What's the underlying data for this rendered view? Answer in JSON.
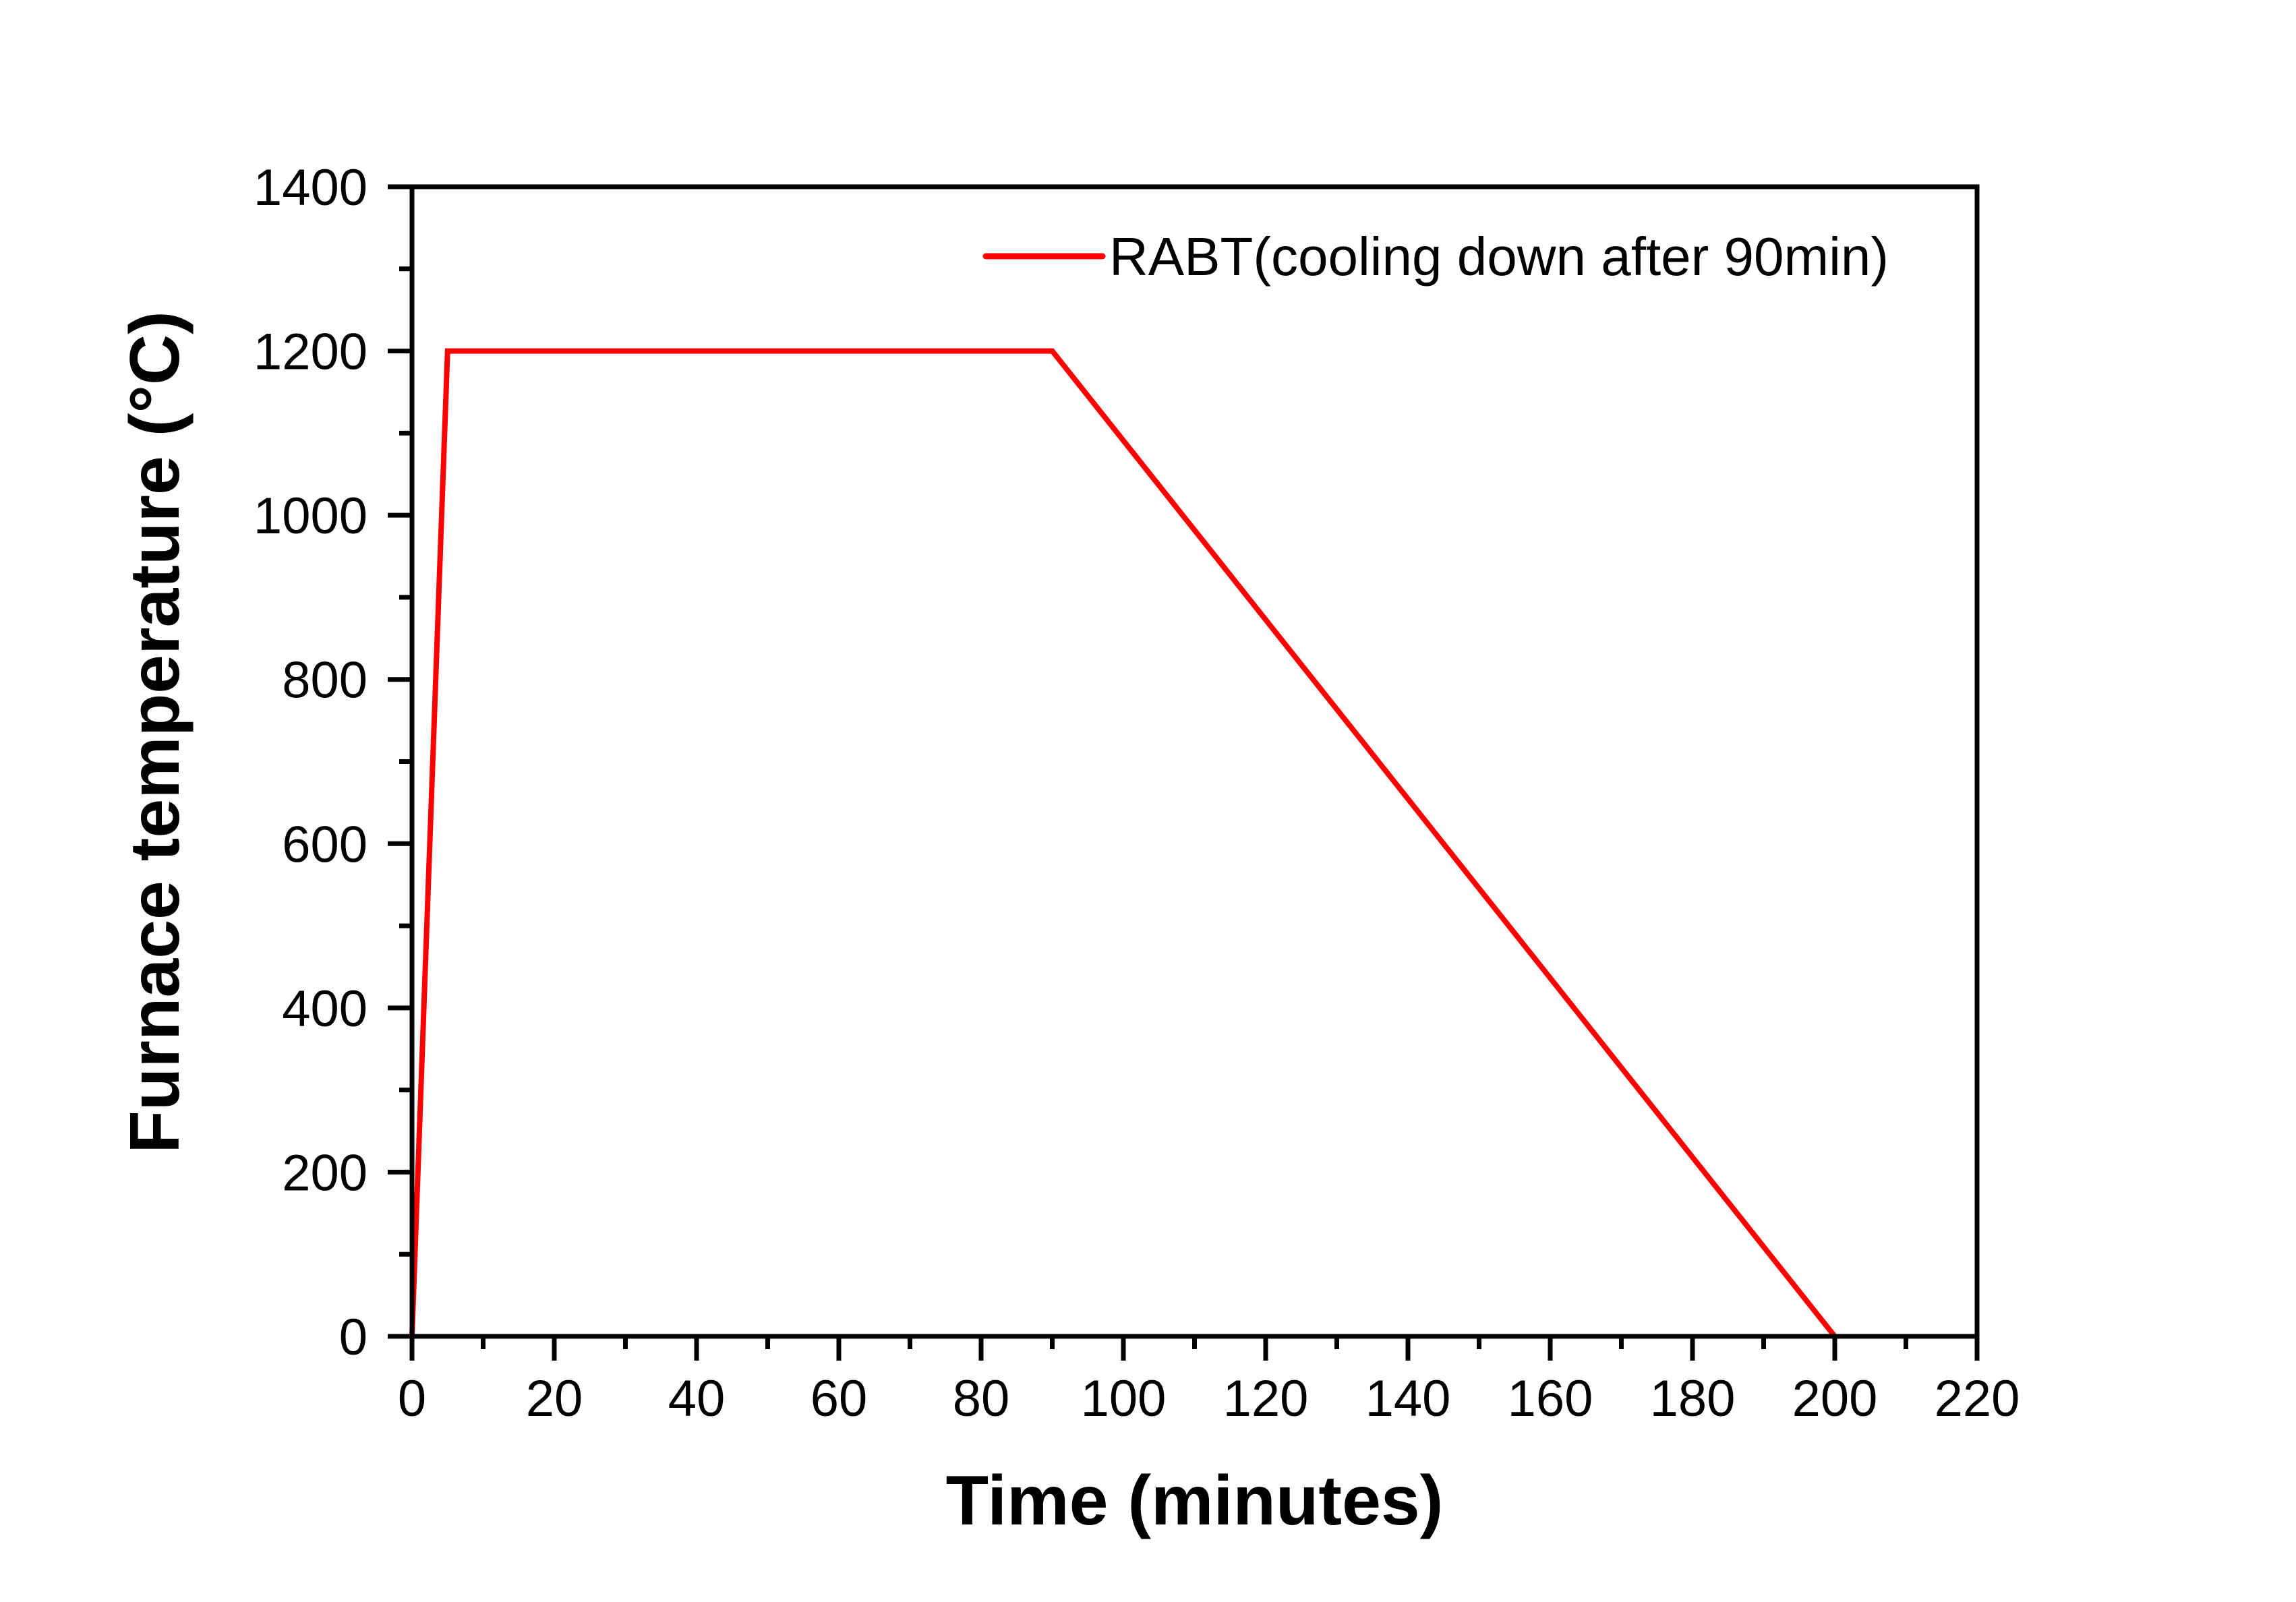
{
  "chart_data": {
    "type": "line",
    "title": "",
    "xlabel": "Time (minutes)",
    "ylabel": "Furnace temperature (°C)",
    "xlim": [
      0,
      220
    ],
    "ylim": [
      0,
      1400
    ],
    "x_ticks": [
      0,
      20,
      40,
      60,
      80,
      100,
      120,
      140,
      160,
      180,
      200,
      220
    ],
    "y_ticks": [
      0,
      200,
      400,
      600,
      800,
      1000,
      1200,
      1400
    ],
    "x_minor_step": 10,
    "y_minor_step": 100,
    "grid": false,
    "legend_position": "top-right",
    "series": [
      {
        "name": "RABT(cooling down after 90min)",
        "color": "#ff0000",
        "x": [
          0,
          5,
          90,
          200
        ],
        "y": [
          0,
          1200,
          1200,
          0
        ]
      }
    ]
  }
}
